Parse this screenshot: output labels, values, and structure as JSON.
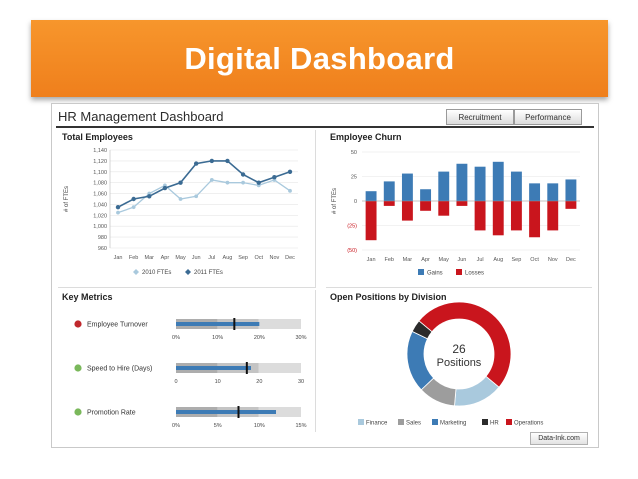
{
  "banner": {
    "title": "Digital Dashboard"
  },
  "dashboard": {
    "title": "HR Management Dashboard",
    "tabs": [
      "Recruitment",
      "Performance"
    ],
    "footer_link": "Data-Ink.com"
  },
  "colors": {
    "banner": "#f28a24",
    "series_2010": "#a9c9dd",
    "series_2011": "#3b6b93",
    "gains": "#3d7bb5",
    "losses": "#c9151d",
    "bullet_bar": "#3d7bb5",
    "status_red": "#c0282d",
    "status_green": "#7ab85b"
  },
  "panels": {
    "total_employees": {
      "title": "Total Employees"
    },
    "employee_churn": {
      "title": "Employee Churn"
    },
    "key_metrics": {
      "title": "Key Metrics"
    },
    "open_positions": {
      "title": "Open Positions by Division"
    }
  },
  "chart_data": [
    {
      "type": "line",
      "title": "Total Employees",
      "ylabel": "# of FTEs",
      "categories": [
        "Jan",
        "Feb",
        "Mar",
        "Apr",
        "May",
        "Jun",
        "Jul",
        "Aug",
        "Sep",
        "Oct",
        "Nov",
        "Dec"
      ],
      "ylim": [
        960,
        1140
      ],
      "yticks": [
        "1,140",
        "1,120",
        "1,100",
        "1,080",
        "1,060",
        "1,040",
        "1,020",
        "1,000",
        "980",
        "960"
      ],
      "grid": true,
      "legend": "bottom",
      "series": [
        {
          "name": "2010 FTEs",
          "values": [
            1025,
            1035,
            1060,
            1075,
            1050,
            1055,
            1085,
            1080,
            1080,
            1075,
            1085,
            1065
          ]
        },
        {
          "name": "2011 FTEs",
          "values": [
            1035,
            1050,
            1055,
            1070,
            1080,
            1115,
            1120,
            1120,
            1095,
            1080,
            1090,
            1100
          ]
        }
      ]
    },
    {
      "type": "bar",
      "title": "Employee Churn",
      "ylabel": "# of FTEs",
      "categories": [
        "Jan",
        "Feb",
        "Mar",
        "Apr",
        "May",
        "Jun",
        "Jul",
        "Aug",
        "Sep",
        "Oct",
        "Nov",
        "Dec"
      ],
      "ylim": [
        -50,
        50
      ],
      "yticks": [
        "50",
        "25",
        "0",
        "(25)",
        "(50)"
      ],
      "grid": true,
      "legend": "bottom",
      "series": [
        {
          "name": "Gains",
          "values": [
            10,
            20,
            28,
            12,
            30,
            38,
            35,
            40,
            30,
            18,
            18,
            22
          ]
        },
        {
          "name": "Losses",
          "values": [
            -40,
            -5,
            -20,
            -10,
            -15,
            -5,
            -30,
            -35,
            -30,
            -37,
            -30,
            -8
          ]
        }
      ]
    },
    {
      "type": "bullet",
      "title": "Key Metrics",
      "metrics": [
        {
          "label": "Employee Turnover",
          "status": "red",
          "value": 20,
          "target": 14,
          "max": 30,
          "ticks": [
            "0%",
            "10%",
            "20%",
            "30%"
          ]
        },
        {
          "label": "Speed to Hire (Days)",
          "status": "green",
          "value": 18,
          "target": 17,
          "max": 30,
          "ticks": [
            "0",
            "10",
            "20",
            "30"
          ]
        },
        {
          "label": "Promotion Rate",
          "status": "green",
          "value": 12,
          "target": 7.5,
          "max": 15,
          "ticks": [
            "0%",
            "5%",
            "10%",
            "15%"
          ]
        }
      ]
    },
    {
      "type": "pie",
      "title": "Open Positions by Division",
      "center_number": "26",
      "center_label": "Positions",
      "legend": "bottom",
      "slices": [
        {
          "name": "Finance",
          "value": 4,
          "color": "#a9c9dd"
        },
        {
          "name": "Sales",
          "value": 3,
          "color": "#9d9d9d"
        },
        {
          "name": "Marketing",
          "value": 5,
          "color": "#3d7bb5"
        },
        {
          "name": "HR",
          "value": 1,
          "color": "#2b2b2b"
        },
        {
          "name": "Operations",
          "value": 13,
          "color": "#c9151d"
        }
      ]
    }
  ]
}
